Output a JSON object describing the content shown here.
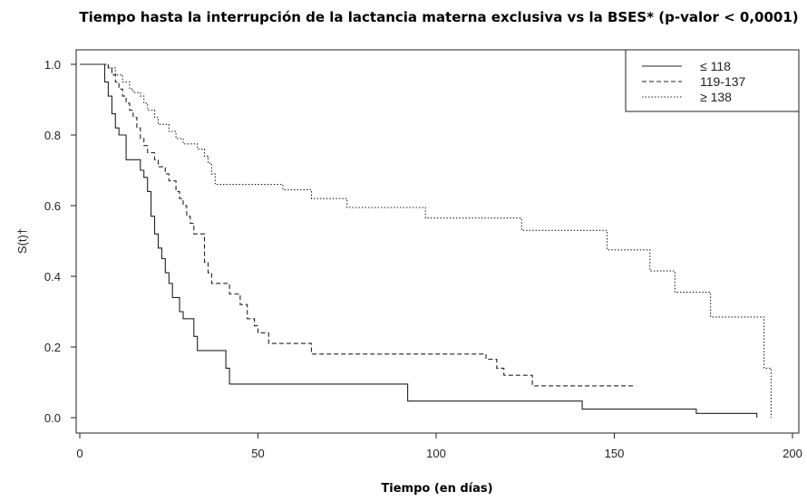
{
  "chart_data": {
    "type": "line",
    "chart_style": "kaplan-meier step",
    "title": "Tiempo hasta la interrupción de la lactancia materna exclusiva vs la BSES* (p-valor < 0,0001)",
    "xlabel": "Tiempo (en días)",
    "ylabel": "S(t)†",
    "xlim": [
      0,
      200
    ],
    "ylim": [
      0,
      1
    ],
    "x_ticks": [
      "0",
      "50",
      "100",
      "150",
      "200"
    ],
    "y_ticks": [
      "0.0",
      "0.2",
      "0.4",
      "0.6",
      "0.8",
      "1.0"
    ],
    "grid": false,
    "legend_position": "top-right",
    "series": [
      {
        "name": "≤ 118",
        "line_style": "solid",
        "color": "#222222",
        "points": [
          [
            0,
            1.0
          ],
          [
            7,
            1.0
          ],
          [
            7,
            0.95
          ],
          [
            8,
            0.95
          ],
          [
            8,
            0.91
          ],
          [
            9,
            0.91
          ],
          [
            9,
            0.86
          ],
          [
            10,
            0.86
          ],
          [
            10,
            0.82
          ],
          [
            11,
            0.82
          ],
          [
            11,
            0.8
          ],
          [
            13,
            0.8
          ],
          [
            13,
            0.73
          ],
          [
            17,
            0.73
          ],
          [
            17,
            0.7
          ],
          [
            18,
            0.7
          ],
          [
            18,
            0.68
          ],
          [
            19,
            0.68
          ],
          [
            19,
            0.64
          ],
          [
            20,
            0.64
          ],
          [
            20,
            0.57
          ],
          [
            21,
            0.57
          ],
          [
            21,
            0.52
          ],
          [
            22,
            0.52
          ],
          [
            22,
            0.48
          ],
          [
            23,
            0.48
          ],
          [
            23,
            0.45
          ],
          [
            24,
            0.45
          ],
          [
            24,
            0.41
          ],
          [
            25,
            0.41
          ],
          [
            25,
            0.38
          ],
          [
            26,
            0.38
          ],
          [
            26,
            0.34
          ],
          [
            28,
            0.34
          ],
          [
            28,
            0.3
          ],
          [
            29,
            0.3
          ],
          [
            29,
            0.28
          ],
          [
            32,
            0.28
          ],
          [
            32,
            0.23
          ],
          [
            33,
            0.23
          ],
          [
            33,
            0.19
          ],
          [
            41,
            0.19
          ],
          [
            41,
            0.14
          ],
          [
            42,
            0.14
          ],
          [
            42,
            0.095
          ],
          [
            92,
            0.095
          ],
          [
            92,
            0.047
          ],
          [
            141,
            0.047
          ],
          [
            141,
            0.024
          ],
          [
            173,
            0.024
          ],
          [
            173,
            0.012
          ],
          [
            190,
            0.012
          ],
          [
            190,
            0.0
          ]
        ]
      },
      {
        "name": "119-137",
        "line_style": "dashed",
        "color": "#222222",
        "points": [
          [
            0,
            1.0
          ],
          [
            8,
            1.0
          ],
          [
            8,
            0.99
          ],
          [
            9,
            0.99
          ],
          [
            9,
            0.97
          ],
          [
            10,
            0.97
          ],
          [
            10,
            0.95
          ],
          [
            11,
            0.95
          ],
          [
            11,
            0.93
          ],
          [
            12,
            0.93
          ],
          [
            12,
            0.91
          ],
          [
            13,
            0.91
          ],
          [
            13,
            0.89
          ],
          [
            14,
            0.89
          ],
          [
            14,
            0.87
          ],
          [
            15,
            0.87
          ],
          [
            15,
            0.85
          ],
          [
            16,
            0.85
          ],
          [
            16,
            0.82
          ],
          [
            17,
            0.82
          ],
          [
            17,
            0.79
          ],
          [
            18,
            0.79
          ],
          [
            18,
            0.77
          ],
          [
            19,
            0.77
          ],
          [
            19,
            0.75
          ],
          [
            21,
            0.75
          ],
          [
            21,
            0.73
          ],
          [
            22,
            0.73
          ],
          [
            22,
            0.71
          ],
          [
            24,
            0.71
          ],
          [
            24,
            0.69
          ],
          [
            25,
            0.69
          ],
          [
            25,
            0.67
          ],
          [
            27,
            0.67
          ],
          [
            27,
            0.64
          ],
          [
            28,
            0.64
          ],
          [
            28,
            0.62
          ],
          [
            29,
            0.62
          ],
          [
            29,
            0.6
          ],
          [
            30,
            0.6
          ],
          [
            30,
            0.57
          ],
          [
            31,
            0.57
          ],
          [
            31,
            0.55
          ],
          [
            32,
            0.55
          ],
          [
            32,
            0.52
          ],
          [
            35,
            0.52
          ],
          [
            35,
            0.44
          ],
          [
            36,
            0.44
          ],
          [
            36,
            0.41
          ],
          [
            37,
            0.41
          ],
          [
            37,
            0.38
          ],
          [
            42,
            0.38
          ],
          [
            42,
            0.35
          ],
          [
            45,
            0.35
          ],
          [
            45,
            0.32
          ],
          [
            47,
            0.32
          ],
          [
            47,
            0.28
          ],
          [
            49,
            0.28
          ],
          [
            49,
            0.26
          ],
          [
            50,
            0.26
          ],
          [
            50,
            0.24
          ],
          [
            53,
            0.24
          ],
          [
            53,
            0.21
          ],
          [
            65,
            0.21
          ],
          [
            65,
            0.18
          ],
          [
            114,
            0.18
          ],
          [
            114,
            0.165
          ],
          [
            117,
            0.165
          ],
          [
            117,
            0.14
          ],
          [
            119,
            0.14
          ],
          [
            119,
            0.12
          ],
          [
            127,
            0.12
          ],
          [
            127,
            0.09
          ],
          [
            156,
            0.09
          ]
        ]
      },
      {
        "name": "≥ 138",
        "line_style": "dotted",
        "color": "#222222",
        "points": [
          [
            0,
            1.0
          ],
          [
            8,
            1.0
          ],
          [
            8,
            0.99
          ],
          [
            10,
            0.99
          ],
          [
            10,
            0.97
          ],
          [
            12,
            0.97
          ],
          [
            12,
            0.95
          ],
          [
            14,
            0.95
          ],
          [
            14,
            0.93
          ],
          [
            15,
            0.93
          ],
          [
            15,
            0.92
          ],
          [
            17,
            0.92
          ],
          [
            17,
            0.91
          ],
          [
            18,
            0.91
          ],
          [
            18,
            0.89
          ],
          [
            19,
            0.89
          ],
          [
            19,
            0.87
          ],
          [
            21,
            0.87
          ],
          [
            21,
            0.85
          ],
          [
            22,
            0.85
          ],
          [
            22,
            0.83
          ],
          [
            25,
            0.83
          ],
          [
            25,
            0.81
          ],
          [
            27,
            0.81
          ],
          [
            27,
            0.79
          ],
          [
            29,
            0.79
          ],
          [
            29,
            0.775
          ],
          [
            33,
            0.775
          ],
          [
            33,
            0.76
          ],
          [
            35,
            0.76
          ],
          [
            35,
            0.74
          ],
          [
            36,
            0.74
          ],
          [
            36,
            0.72
          ],
          [
            37,
            0.72
          ],
          [
            37,
            0.69
          ],
          [
            38,
            0.69
          ],
          [
            38,
            0.66
          ],
          [
            57,
            0.66
          ],
          [
            57,
            0.645
          ],
          [
            65,
            0.645
          ],
          [
            65,
            0.62
          ],
          [
            75,
            0.62
          ],
          [
            75,
            0.595
          ],
          [
            97,
            0.595
          ],
          [
            97,
            0.565
          ],
          [
            124,
            0.565
          ],
          [
            124,
            0.53
          ],
          [
            148,
            0.53
          ],
          [
            148,
            0.475
          ],
          [
            160,
            0.475
          ],
          [
            160,
            0.415
          ],
          [
            167,
            0.415
          ],
          [
            167,
            0.355
          ],
          [
            177,
            0.355
          ],
          [
            177,
            0.285
          ],
          [
            192,
            0.285
          ],
          [
            192,
            0.14
          ],
          [
            194,
            0.14
          ],
          [
            194,
            0.0
          ]
        ]
      }
    ]
  }
}
